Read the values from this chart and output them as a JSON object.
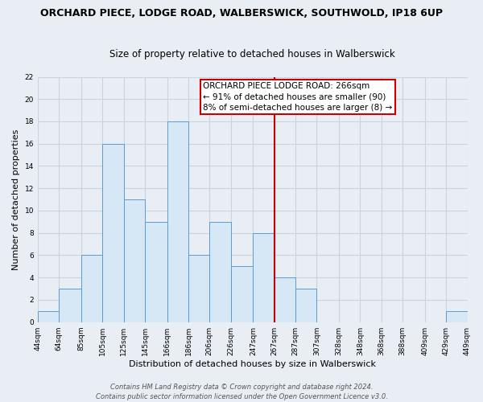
{
  "title": "ORCHARD PIECE, LODGE ROAD, WALBERSWICK, SOUTHWOLD, IP18 6UP",
  "subtitle": "Size of property relative to detached houses in Walberswick",
  "xlabel": "Distribution of detached houses by size in Walberswick",
  "ylabel": "Number of detached properties",
  "bar_edges": [
    44,
    64,
    85,
    105,
    125,
    145,
    166,
    186,
    206,
    226,
    247,
    267,
    287,
    307,
    328,
    348,
    368,
    388,
    409,
    429,
    449
  ],
  "bar_heights": [
    1,
    3,
    6,
    16,
    11,
    9,
    18,
    6,
    9,
    5,
    8,
    4,
    3,
    0,
    0,
    0,
    0,
    0,
    0,
    1
  ],
  "tick_labels": [
    "44sqm",
    "64sqm",
    "85sqm",
    "105sqm",
    "125sqm",
    "145sqm",
    "166sqm",
    "186sqm",
    "206sqm",
    "226sqm",
    "247sqm",
    "267sqm",
    "287sqm",
    "307sqm",
    "328sqm",
    "348sqm",
    "368sqm",
    "388sqm",
    "409sqm",
    "429sqm",
    "449sqm"
  ],
  "bar_color": "#d6e8f5",
  "bar_edge_color": "#5b9bd5",
  "vline_x": 267,
  "vline_color": "#cc0000",
  "ylim": [
    0,
    22
  ],
  "yticks": [
    0,
    2,
    4,
    6,
    8,
    10,
    12,
    14,
    16,
    18,
    20,
    22
  ],
  "annotation_title": "ORCHARD PIECE LODGE ROAD: 266sqm",
  "annotation_line1": "← 91% of detached houses are smaller (90)",
  "annotation_line2": "8% of semi-detached houses are larger (8) →",
  "annotation_box_color": "#ffffff",
  "annotation_box_edge_color": "#cc0000",
  "footer_line1": "Contains HM Land Registry data © Crown copyright and database right 2024.",
  "footer_line2": "Contains public sector information licensed under the Open Government Licence v3.0.",
  "background_color": "#e8eef4",
  "grid_color": "#c8d4de",
  "title_fontsize": 9,
  "subtitle_fontsize": 8.5,
  "axis_label_fontsize": 8,
  "tick_fontsize": 6.5,
  "footer_fontsize": 6,
  "annotation_fontsize": 7.5
}
